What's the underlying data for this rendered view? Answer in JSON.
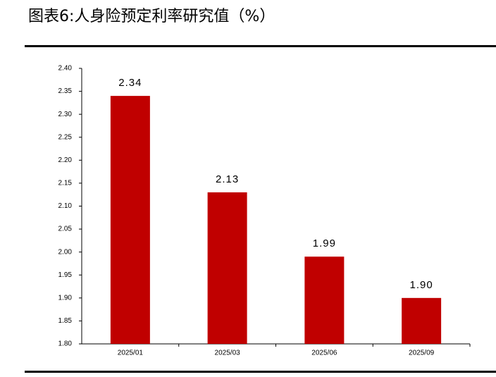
{
  "chart_data": {
    "type": "bar",
    "title": "图表6:人身险预定利率研究值（%）",
    "categories": [
      "2025/01",
      "2025/03",
      "2025/06",
      "2025/09"
    ],
    "values": [
      2.34,
      2.13,
      1.99,
      1.9
    ],
    "value_labels": [
      "2.34",
      "2.13",
      "1.99",
      "1.90"
    ],
    "color": "#c00000",
    "ylim": [
      1.8,
      2.4
    ],
    "yticks": [
      {
        "value": 1.8,
        "label": "1.80"
      },
      1.85,
      {
        "value": 1.9,
        "label": "1.90"
      },
      1.95,
      {
        "value": 2.0,
        "label": "2.00"
      },
      2.05,
      {
        "value": 2.1,
        "label": "2.10"
      },
      2.15,
      {
        "value": 2.2,
        "label": "2.20"
      },
      2.25,
      {
        "value": 2.3,
        "label": "2.30"
      },
      2.35,
      {
        "value": 2.4,
        "label": "2.40"
      }
    ],
    "grid": false
  }
}
